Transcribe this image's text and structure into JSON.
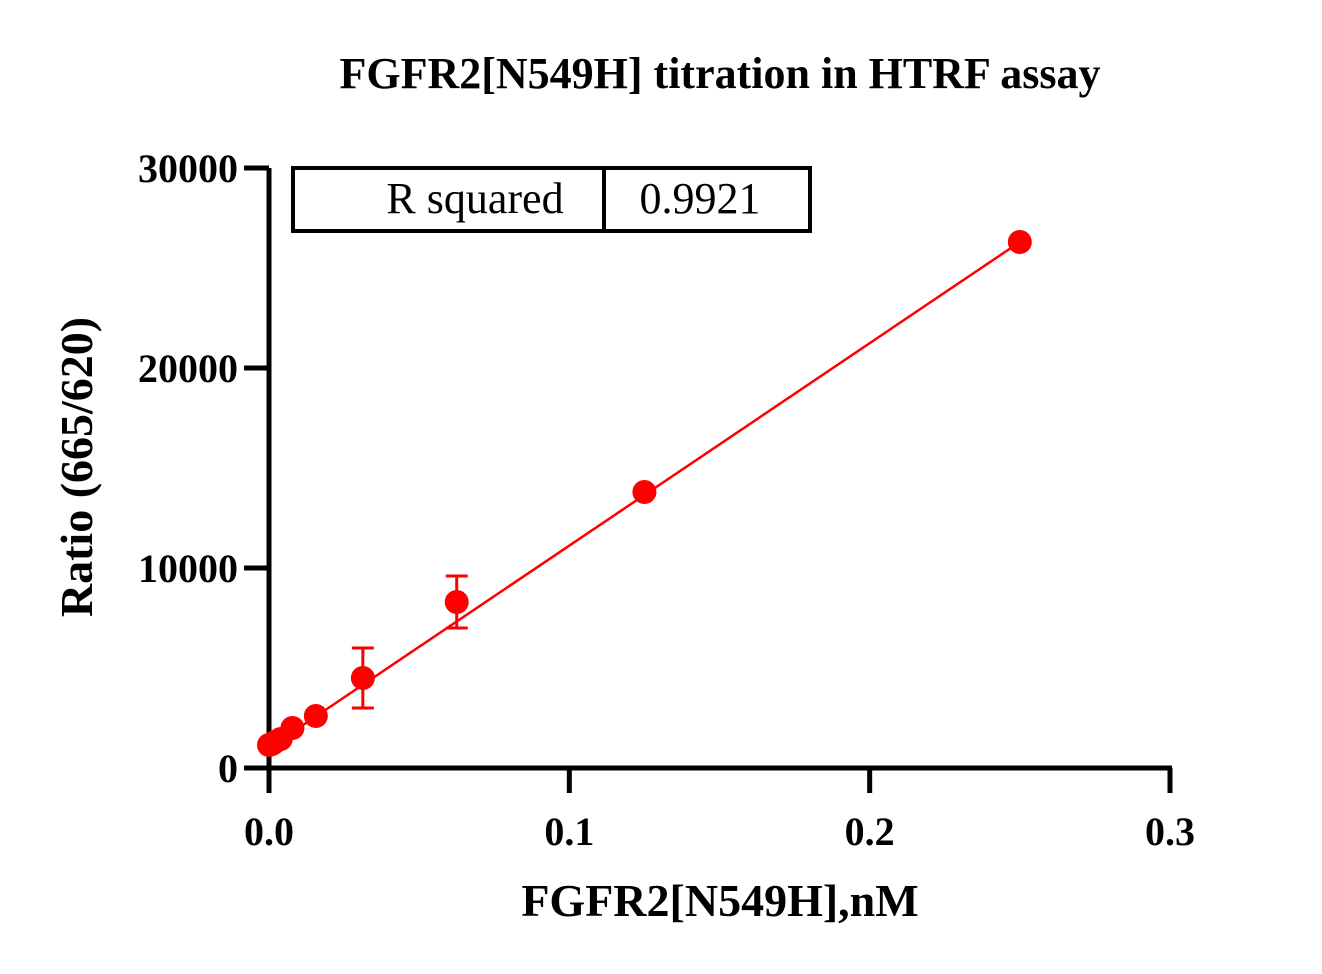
{
  "chart_data": {
    "type": "scatter",
    "title": "FGFR2[N549H]  titration in HTRF assay",
    "xlabel": "FGFR2[N549H],nM",
    "ylabel": "Ratio (665/620)",
    "xlim": [
      0,
      0.3
    ],
    "ylim": [
      0,
      30000
    ],
    "x_ticks": [
      0.0,
      0.1,
      0.2,
      0.3
    ],
    "x_tick_labels": [
      "0.0",
      "0.1",
      "0.2",
      "0.3"
    ],
    "y_ticks": [
      0,
      10000,
      20000,
      30000
    ],
    "y_tick_labels": [
      "0",
      "10000",
      "20000",
      "30000"
    ],
    "grid": false,
    "series": [
      {
        "color": "#ff0000",
        "points": [
          {
            "x": 0.0,
            "y": 1150,
            "err": 0
          },
          {
            "x": 0.00098,
            "y": 1200,
            "err": 0
          },
          {
            "x": 0.00195,
            "y": 1300,
            "err": 0
          },
          {
            "x": 0.0039,
            "y": 1450,
            "err": 0
          },
          {
            "x": 0.0078,
            "y": 2000,
            "err": 0
          },
          {
            "x": 0.0156,
            "y": 2600,
            "err": 0
          },
          {
            "x": 0.03125,
            "y": 4500,
            "err": 1500
          },
          {
            "x": 0.0625,
            "y": 8300,
            "err": 1300
          },
          {
            "x": 0.125,
            "y": 13800,
            "err": 0
          },
          {
            "x": 0.25,
            "y": 26300,
            "err": 0
          }
        ],
        "fit_line": {
          "x": [
            0.0,
            0.25
          ],
          "y": [
            1000,
            26300
          ]
        }
      }
    ],
    "stats_table": {
      "label": "R squared",
      "value": "0.9921"
    }
  }
}
